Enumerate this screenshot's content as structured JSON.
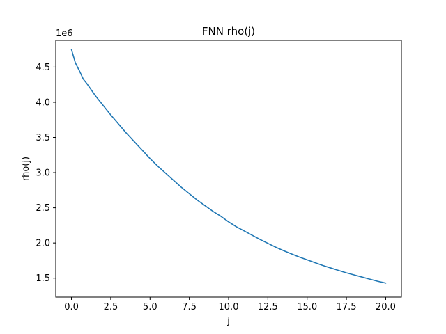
{
  "chart_data": {
    "type": "line",
    "title": "FNN rho(j)",
    "xlabel": "j",
    "ylabel": "rho(j)",
    "y_offset_label": "1e6",
    "xlim": [
      -1.0,
      21.0
    ],
    "ylim": [
      1.23,
      4.88
    ],
    "x_ticks": [
      0.0,
      2.5,
      5.0,
      7.5,
      10.0,
      12.5,
      15.0,
      17.5,
      20.0
    ],
    "x_tick_labels": [
      "0.0",
      "2.5",
      "5.0",
      "7.5",
      "10.0",
      "12.5",
      "15.0",
      "17.5",
      "20.0"
    ],
    "y_ticks": [
      1.5,
      2.0,
      2.5,
      3.0,
      3.5,
      4.0,
      4.5
    ],
    "y_tick_labels": [
      "1.5",
      "2.0",
      "2.5",
      "3.0",
      "3.5",
      "4.0",
      "4.5"
    ],
    "grid": false,
    "legend": "none",
    "series": [
      {
        "color": "#1f77b4",
        "x": [
          0,
          0.25,
          0.5,
          0.75,
          1,
          1.5,
          2,
          2.5,
          3,
          3.5,
          4,
          4.5,
          5,
          5.5,
          6,
          6.5,
          7,
          7.5,
          8,
          8.5,
          9,
          9.5,
          10,
          10.5,
          11,
          11.5,
          12,
          12.5,
          13,
          13.5,
          14,
          14.5,
          15,
          15.5,
          16,
          16.5,
          17,
          17.5,
          18,
          18.5,
          19,
          19.5,
          20
        ],
        "y": [
          4.75,
          4.56,
          4.45,
          4.33,
          4.26,
          4.1,
          3.96,
          3.82,
          3.69,
          3.56,
          3.44,
          3.32,
          3.2,
          3.09,
          2.99,
          2.89,
          2.79,
          2.7,
          2.61,
          2.53,
          2.45,
          2.38,
          2.3,
          2.23,
          2.17,
          2.11,
          2.05,
          1.995,
          1.94,
          1.89,
          1.845,
          1.8,
          1.76,
          1.72,
          1.68,
          1.645,
          1.61,
          1.575,
          1.545,
          1.515,
          1.485,
          1.455,
          1.43
        ]
      }
    ]
  }
}
